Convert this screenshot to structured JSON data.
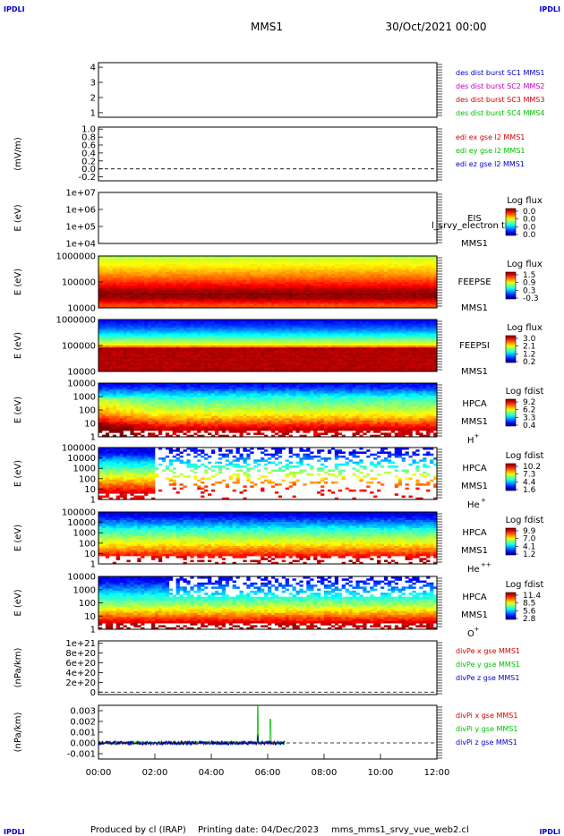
{
  "corner_labels": {
    "top_left": "IPDLI",
    "top_right": "IPDLI",
    "bottom_left": "IPDLI",
    "bottom_right": "IPDLI"
  },
  "header": {
    "spacecraft": "MMS1",
    "date": "30/Oct/2021 00:00"
  },
  "footer": {
    "produced_by": "Produced by cl (IRAP)",
    "printing_date": "Printing date: 04/Dec/2023",
    "script": "mms_mms1_srvy_vue_web2.cl"
  },
  "colors": {
    "red": "#d40000",
    "green": "#00c000",
    "blue": "#0000c8",
    "magenta": "#c000c0"
  },
  "chart_data": [
    {
      "type": "line",
      "panel": "des-dist-burst",
      "ylabel": "",
      "yticks": [
        "1",
        "2",
        "3",
        "4"
      ],
      "ylim": [
        0.7,
        4.3
      ],
      "legend": [
        {
          "name": "des dist burst SC1 MMS1",
          "color": "#0000c8"
        },
        {
          "name": "des dist burst SC2 MMS2",
          "color": "#c000c0"
        },
        {
          "name": "des dist burst SC3 MMS3",
          "color": "#d40000"
        },
        {
          "name": "des dist burst SC4 MMS4",
          "color": "#00c000"
        }
      ],
      "series": []
    },
    {
      "type": "line",
      "panel": "edi-e",
      "ylabel": "(mV/m)",
      "yticks": [
        "-0.2",
        "0.0",
        "0.2",
        "0.4",
        "0.6",
        "0.8",
        "1.0"
      ],
      "ylim": [
        -0.3,
        1.05
      ],
      "zero_line": true,
      "legend": [
        {
          "name": "edi ex gse l2 MMS1",
          "color": "#d40000"
        },
        {
          "name": "edi ey gse l2 MMS1",
          "color": "#00c000"
        },
        {
          "name": "edi ez gse l2 MMS1",
          "color": "#0000c8"
        }
      ],
      "series": []
    },
    {
      "type": "heatmap",
      "panel": "eis",
      "ylabel": "E (eV)",
      "yticks": [
        "1e+04",
        "1e+05",
        "1e+06",
        "1e+07"
      ],
      "scale": "log",
      "instrument": "EIS",
      "sc": "MMS1",
      "overlay_text": "l_srvy_electron to",
      "colorbar": {
        "title": "Log flux",
        "ticks": [
          "0.0",
          "0.0",
          "0.0",
          "0.0"
        ]
      },
      "profile": []
    },
    {
      "type": "heatmap",
      "panel": "feeps-e",
      "ylabel": "E (eV)",
      "yticks": [
        "10000",
        "100000",
        "1000000"
      ],
      "scale": "log",
      "instrument": "FEEPSE",
      "sc": "MMS1",
      "colorbar": {
        "title": "Log flux",
        "ticks": [
          "1.5",
          "0.9",
          "0.3",
          "-0.3"
        ]
      },
      "x_extent_hours": [
        0,
        12
      ],
      "profile": [
        {
          "y": 0.98,
          "level": 0.55
        },
        {
          "y": 0.9,
          "level": 0.6
        },
        {
          "y": 0.8,
          "level": 0.64
        },
        {
          "y": 0.7,
          "level": 0.7
        },
        {
          "y": 0.58,
          "level": 0.77
        },
        {
          "y": 0.48,
          "level": 0.84
        },
        {
          "y": 0.4,
          "level": 0.9
        },
        {
          "y": 0.33,
          "level": 0.96
        },
        {
          "y": 0.24,
          "level": 0.99
        },
        {
          "y": 0.16,
          "level": 0.95
        },
        {
          "y": 0.1,
          "level": 0.86
        },
        {
          "y": 0.05,
          "level": 0.8
        }
      ]
    },
    {
      "type": "heatmap",
      "panel": "feeps-i",
      "ylabel": "E (eV)",
      "yticks": [
        "10000",
        "100000",
        "1000000"
      ],
      "scale": "log",
      "instrument": "FEEPSI",
      "sc": "MMS1",
      "colorbar": {
        "title": "Log flux",
        "ticks": [
          "3.0",
          "2.1",
          "1.2",
          "0.2"
        ]
      },
      "x_extent_hours": [
        0,
        12
      ],
      "profile": [
        {
          "y": 0.98,
          "level": 0.12
        },
        {
          "y": 0.88,
          "level": 0.18
        },
        {
          "y": 0.78,
          "level": 0.28
        },
        {
          "y": 0.7,
          "level": 0.38
        },
        {
          "y": 0.62,
          "level": 0.48
        },
        {
          "y": 0.56,
          "level": 0.56
        },
        {
          "y": 0.51,
          "level": 0.63
        },
        {
          "y": 0.47,
          "level": 0.78
        },
        {
          "y": 0.45,
          "level": 0.95
        }
      ]
    },
    {
      "type": "heatmap",
      "panel": "hpca-h",
      "ylabel": "E (eV)",
      "yticks": [
        "1",
        "10",
        "100",
        "1000",
        "10000"
      ],
      "scale": "log",
      "instrument": "HPCA",
      "sc": "MMS1",
      "species": "H",
      "species_charge": "+",
      "colorbar": {
        "title": "Log fdist",
        "ticks": [
          "9.2",
          "6.2",
          "3.3",
          "0.4"
        ]
      },
      "x_extent_hours": [
        0,
        12
      ],
      "profile": [
        {
          "y": 0.98,
          "level": 0.12
        },
        {
          "y": 0.9,
          "level": 0.18
        },
        {
          "y": 0.82,
          "level": 0.3
        },
        {
          "y": 0.72,
          "level": 0.42
        },
        {
          "y": 0.6,
          "level": 0.5
        },
        {
          "y": 0.48,
          "level": 0.58
        },
        {
          "y": 0.36,
          "level": 0.68
        },
        {
          "y": 0.24,
          "level": 0.82
        },
        {
          "y": 0.14,
          "level": 0.93
        }
      ]
    },
    {
      "type": "heatmap",
      "panel": "hpca-he",
      "ylabel": "E (eV)",
      "yticks": [
        "1",
        "10",
        "100",
        "1000",
        "10000",
        "100000"
      ],
      "scale": "log",
      "instrument": "HPCA",
      "sc": "MMS1",
      "species": "He",
      "species_charge": "+",
      "colorbar": {
        "title": "Log fdist",
        "ticks": [
          "10.2",
          "7.3",
          "4.4",
          "1.6"
        ]
      },
      "x_extent_hours": [
        0,
        12
      ],
      "profile": [
        {
          "y": 0.9,
          "level": 0.12
        },
        {
          "y": 0.75,
          "level": 0.3
        },
        {
          "y": 0.6,
          "level": 0.45
        },
        {
          "y": 0.45,
          "level": 0.6
        },
        {
          "y": 0.3,
          "level": 0.75
        },
        {
          "y": 0.15,
          "level": 0.9
        }
      ]
    },
    {
      "type": "heatmap",
      "panel": "hpca-he2",
      "ylabel": "E (eV)",
      "yticks": [
        "1",
        "10",
        "100",
        "1000",
        "10000",
        "100000"
      ],
      "scale": "log",
      "instrument": "HPCA",
      "sc": "MMS1",
      "species": "He",
      "species_charge": "++",
      "colorbar": {
        "title": "Log fdist",
        "ticks": [
          "9.9",
          "7.0",
          "4.1",
          "1.2"
        ]
      },
      "x_extent_hours": [
        0,
        12
      ],
      "profile": [
        {
          "y": 0.95,
          "level": 0.1
        },
        {
          "y": 0.86,
          "level": 0.18
        },
        {
          "y": 0.75,
          "level": 0.3
        },
        {
          "y": 0.64,
          "level": 0.42
        },
        {
          "y": 0.52,
          "level": 0.52
        },
        {
          "y": 0.4,
          "level": 0.62
        },
        {
          "y": 0.28,
          "level": 0.74
        },
        {
          "y": 0.16,
          "level": 0.86
        },
        {
          "y": 0.07,
          "level": 0.95
        }
      ]
    },
    {
      "type": "heatmap",
      "panel": "hpca-o",
      "ylabel": "E (eV)",
      "yticks": [
        "1",
        "10",
        "100",
        "1000",
        "10000"
      ],
      "scale": "log",
      "instrument": "HPCA",
      "sc": "MMS1",
      "species": "O",
      "species_charge": "+",
      "colorbar": {
        "title": "Log fdist",
        "ticks": [
          "11.4",
          "8.5",
          "5.6",
          "2.8"
        ]
      },
      "x_extent_hours": [
        0,
        12
      ],
      "profile": [
        {
          "y": 0.92,
          "level": 0.12
        },
        {
          "y": 0.78,
          "level": 0.25
        },
        {
          "y": 0.64,
          "level": 0.38
        },
        {
          "y": 0.5,
          "level": 0.5
        },
        {
          "y": 0.36,
          "level": 0.64
        },
        {
          "y": 0.22,
          "level": 0.8
        },
        {
          "y": 0.1,
          "level": 0.94
        }
      ]
    },
    {
      "type": "line",
      "panel": "divpe",
      "ylabel": "(nPa/km)",
      "yticks": [
        "0",
        "2e+20",
        "4e+20",
        "6e+20",
        "8e+20",
        "1e+21"
      ],
      "ylim": [
        -5e+19,
        1.05e+21
      ],
      "zero_line": true,
      "legend": [
        {
          "name": "divPe x gse MMS1",
          "color": "#d40000"
        },
        {
          "name": "divPe y gse MMS1",
          "color": "#00c000"
        },
        {
          "name": "divPe z gse MMS1",
          "color": "#0000c8"
        }
      ],
      "series": []
    },
    {
      "type": "line",
      "panel": "divpi",
      "ylabel": "(nPa/km)",
      "yticks": [
        "-0.001",
        "0.000",
        "0.001",
        "0.002",
        "0.003"
      ],
      "ylim": [
        -0.0015,
        0.0035
      ],
      "zero_line": true,
      "x_extent_hours": [
        0,
        6.6
      ],
      "legend": [
        {
          "name": "divPi x gse MMS1",
          "color": "#d40000"
        },
        {
          "name": "divPi y gse MMS1",
          "color": "#00c000"
        },
        {
          "name": "divPi z gse MMS1",
          "color": "#0000c8"
        }
      ],
      "series": [
        {
          "name": "divPi x gse MMS1",
          "noise": 0.00012,
          "spikes": [
            {
              "x": 5.65,
              "y": 0.0008
            }
          ]
        },
        {
          "name": "divPi y gse MMS1",
          "noise": 0.00014,
          "spikes": [
            {
              "x": 5.65,
              "y": 0.0034
            },
            {
              "x": 6.1,
              "y": 0.0022
            }
          ]
        },
        {
          "name": "divPi z gse MMS1",
          "noise": 0.0002,
          "spikes": [
            {
              "x": 5.65,
              "y": 0.0006
            }
          ]
        }
      ]
    }
  ],
  "time_axis": {
    "ticks_hours": [
      0,
      2,
      4,
      6,
      8,
      10,
      12
    ],
    "tick_labels": [
      "00:00",
      "02:00",
      "04:00",
      "06:00",
      "08:00",
      "10:00",
      "12:00"
    ]
  }
}
